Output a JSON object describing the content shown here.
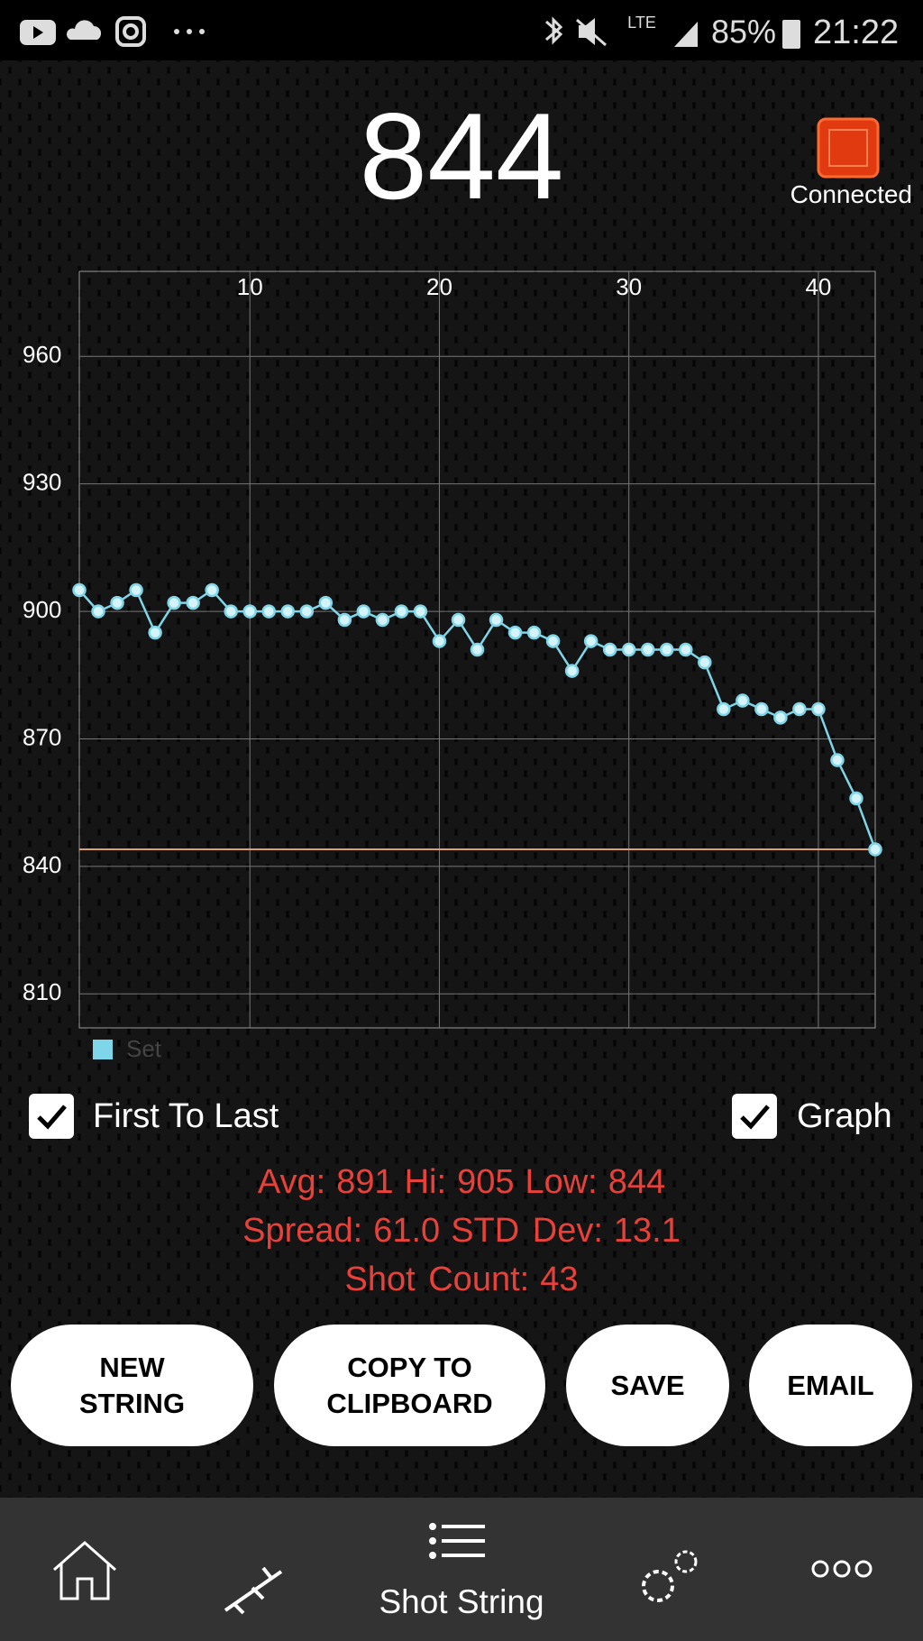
{
  "status_bar": {
    "network": "LTE",
    "battery": "85%",
    "time": "21:22"
  },
  "reading": 844,
  "device_status": "Connected",
  "chart_data": {
    "type": "line",
    "x": [
      1,
      2,
      3,
      4,
      5,
      6,
      7,
      8,
      9,
      10,
      11,
      12,
      13,
      14,
      15,
      16,
      17,
      18,
      19,
      20,
      21,
      22,
      23,
      24,
      25,
      26,
      27,
      28,
      29,
      30,
      31,
      32,
      33,
      34,
      35,
      36,
      37,
      38,
      39,
      40,
      41,
      42,
      43
    ],
    "series": [
      {
        "name": "Set",
        "color": "#7fd6e8",
        "values": [
          905,
          900,
          902,
          905,
          895,
          902,
          902,
          905,
          900,
          900,
          900,
          900,
          900,
          902,
          898,
          900,
          898,
          900,
          900,
          893,
          898,
          891,
          898,
          895,
          895,
          893,
          886,
          893,
          891,
          891,
          891,
          891,
          891,
          888,
          877,
          879,
          877,
          875,
          877,
          877,
          865,
          856,
          844
        ]
      }
    ],
    "reference_value": 844,
    "reference_color": "#d9a070",
    "xlim": [
      1,
      43
    ],
    "xticks": [
      10,
      20,
      30,
      40
    ],
    "ylim": [
      802,
      980
    ],
    "yticks": [
      810,
      840,
      870,
      900,
      930,
      960
    ],
    "grid": true
  },
  "options": {
    "first_to_last": "First To Last",
    "graph": "Graph"
  },
  "stats": [
    [
      {
        "label": "Avg:",
        "value": "891"
      },
      {
        "label": "Hi:",
        "value": "905"
      },
      {
        "label": "Low:",
        "value": "844"
      }
    ],
    [
      {
        "label": "Spread:",
        "value": "61.0"
      },
      {
        "label": "STD Dev:",
        "value": "13.1"
      }
    ],
    [
      {
        "label": "Shot Count:",
        "value": "43"
      }
    ]
  ],
  "buttons": [
    "NEW STRING",
    "COPY TO CLIPBOARD",
    "SAVE",
    "EMAIL"
  ],
  "nav": {
    "active": "Shot String"
  }
}
